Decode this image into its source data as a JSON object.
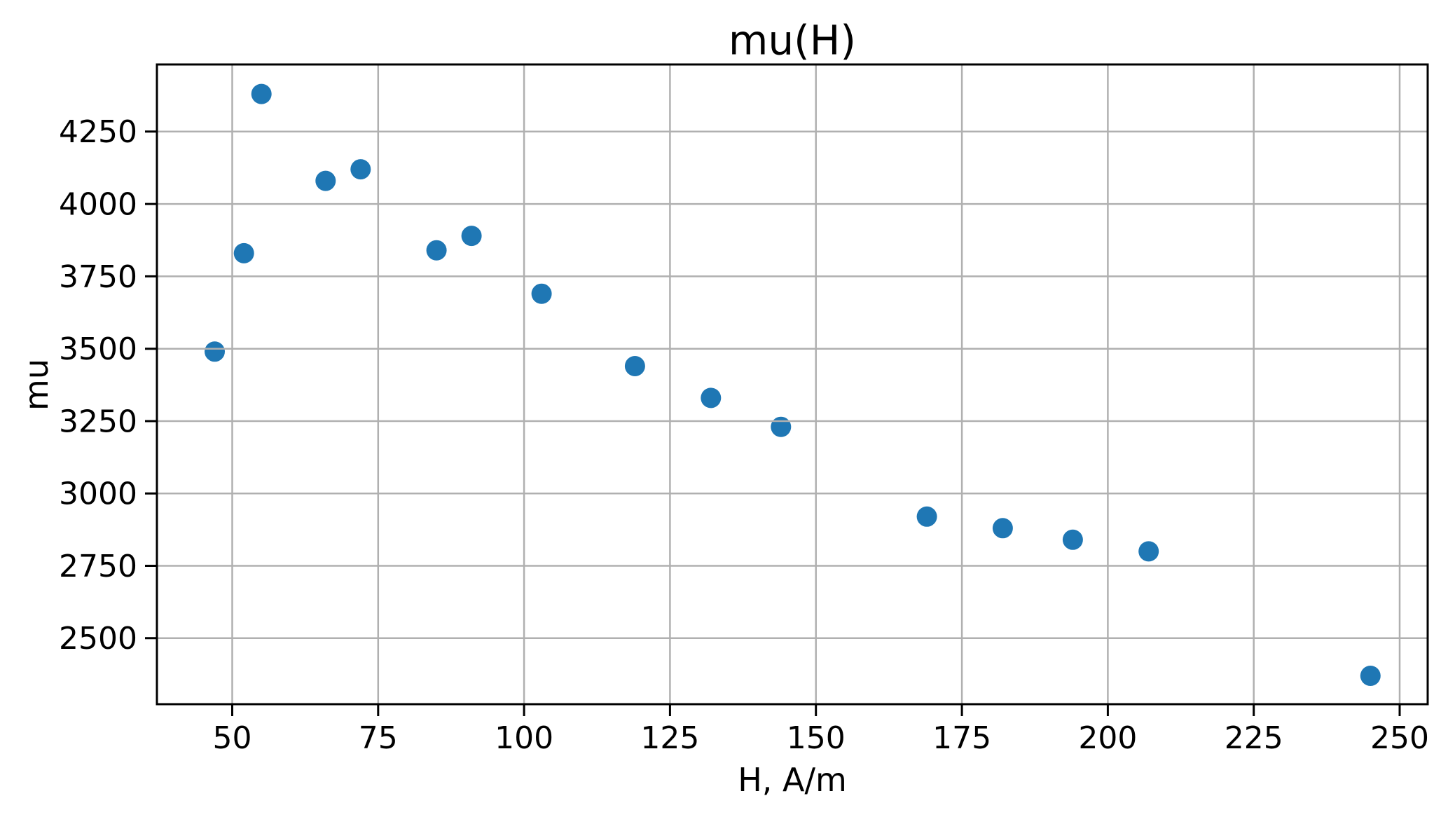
{
  "figure": {
    "background": "#ffffff",
    "text_color": "#000000"
  },
  "chart_data": {
    "type": "scatter",
    "title": "mu(H)",
    "xlabel": "H, A/m",
    "ylabel": "mu",
    "x": [
      47,
      52,
      55,
      66,
      72,
      85,
      91,
      103,
      119,
      132,
      144,
      169,
      182,
      194,
      207,
      245
    ],
    "y": [
      3490,
      3830,
      4380,
      4080,
      4120,
      3840,
      3890,
      3690,
      3440,
      3330,
      3230,
      2920,
      2880,
      2840,
      2800,
      2370
    ],
    "xticks": [
      50,
      75,
      100,
      125,
      150,
      175,
      200,
      225,
      250
    ],
    "yticks": [
      2500,
      2750,
      3000,
      3250,
      3500,
      3750,
      4000,
      4250
    ],
    "xlim": [
      37.1,
      254.8
    ],
    "ylim": [
      2272,
      4482
    ],
    "grid": true,
    "grid_over_markers": true,
    "legend": "none",
    "marker_color": "#1f77b4",
    "grid_color": "#b0b0b0",
    "axis_color": "#000000"
  }
}
